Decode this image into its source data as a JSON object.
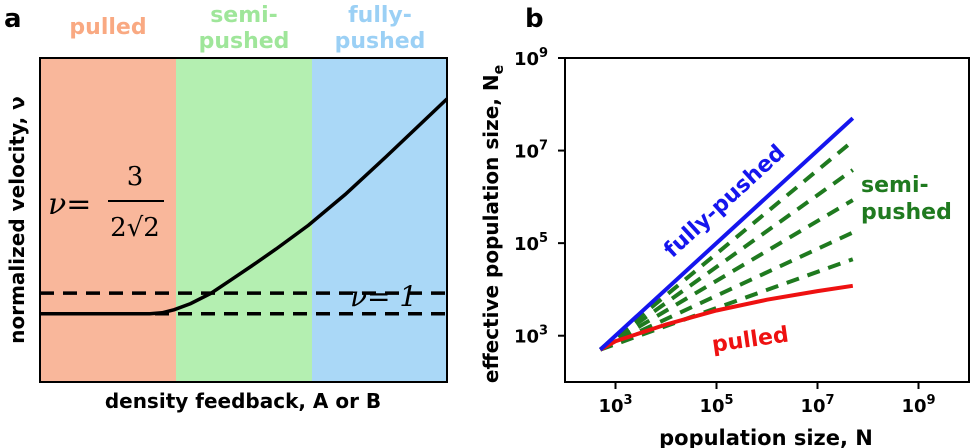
{
  "panel_a": {
    "letter": "a",
    "regions": [
      {
        "label": "pulled",
        "color": "#f9b79b",
        "text_color": "#f9a982"
      },
      {
        "label": "semi-\npushed",
        "color": "#b4efb1",
        "text_color": "#9fe69a"
      },
      {
        "label": "fully-\npushed",
        "color": "#aad8f7",
        "text_color": "#9bd0f5"
      }
    ],
    "eq_top_prefix": "ν=",
    "eq_top_numerator": "3",
    "eq_top_denominator": "2√2",
    "eq_bottom": "ν= 1",
    "xlabel": "density feedback, A or B",
    "ylabel": "normalized velocity, ν"
  },
  "panel_b": {
    "letter": "b",
    "xlabel": "population size, N",
    "ylabel": "effective population size, N",
    "ylabel_sub": "e",
    "label_fully": "fully-pushed",
    "label_semi": "semi-\npushed",
    "label_pulled": "pulled",
    "colors": {
      "fully": "#1515ee",
      "semi": "#1f7a1f",
      "pulled": "#ee1111"
    }
  },
  "chart_data": [
    {
      "type": "line",
      "xlabel": "density feedback, A or B",
      "ylabel": "normalized velocity, ν",
      "series": [
        {
          "name": "velocity",
          "x": [
            0,
            0.27,
            0.3,
            0.33,
            0.37,
            0.42,
            0.47,
            0.52,
            0.58,
            0.66,
            0.75,
            0.85,
            1.0
          ],
          "y": [
            1,
            1,
            1.003,
            1.012,
            1.03,
            1.06,
            1.1,
            1.14,
            1.19,
            1.26,
            1.35,
            1.46,
            1.63
          ]
        }
      ],
      "hlines": [
        1,
        1.0607
      ],
      "ylim": [
        0.8,
        1.75
      ],
      "xlim": [
        0,
        1
      ]
    },
    {
      "type": "line",
      "xlabel": "population size, N",
      "ylabel": "effective population size, N",
      "xscale": "log",
      "yscale": "log",
      "xlim": [
        100,
        10000000000.0
      ],
      "ylim": [
        100.0,
        1000000000.0
      ],
      "xticks": [
        "10^3",
        "10^5",
        "10^7",
        "10^9"
      ],
      "yticks": [
        "10^3",
        "10^5",
        "10^7",
        "10^9"
      ],
      "series": [
        {
          "name": "fully-pushed",
          "x": [
            500,
            50000000.0
          ],
          "y": [
            500,
            50000000.0
          ]
        },
        {
          "x": [
            500,
            50000000.0
          ],
          "y": [
            500,
            16000000.0
          ]
        },
        {
          "x": [
            500,
            50000000.0
          ],
          "y": [
            500,
            3800000.0
          ]
        },
        {
          "x": [
            500,
            50000000.0
          ],
          "y": [
            500,
            850000.0
          ]
        },
        {
          "x": [
            500,
            50000000.0
          ],
          "y": [
            500,
            170000.0
          ]
        },
        {
          "x": [
            500,
            50000000.0
          ],
          "y": [
            500,
            45000.0
          ]
        },
        {
          "name": "pulled",
          "x": [
            500,
            1000.0,
            10000.0,
            100000.0,
            1000000.0,
            10000000.0,
            50000000.0
          ],
          "y": [
            500,
            760,
            1750,
            3500,
            6000,
            9200,
            12000
          ]
        }
      ]
    }
  ]
}
